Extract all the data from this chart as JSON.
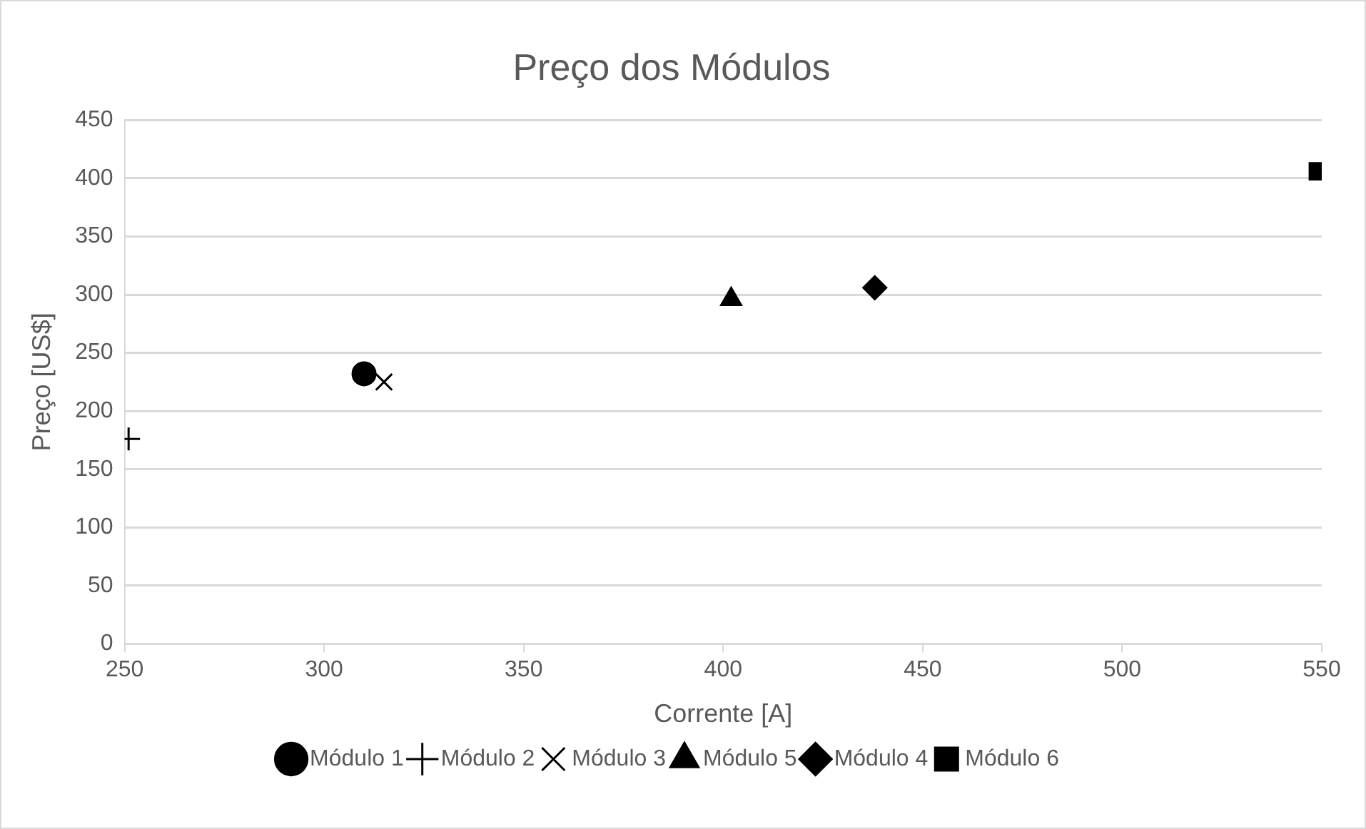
{
  "chart_data": {
    "type": "scatter",
    "title": "Preço dos Módulos",
    "xlabel": "Corrente [A]",
    "ylabel": "Preço [US$]",
    "xlim": [
      250,
      550
    ],
    "xticks": [
      250,
      300,
      350,
      400,
      450,
      500,
      550
    ],
    "ylim": [
      0,
      450
    ],
    "yticks": [
      0,
      50,
      100,
      150,
      200,
      250,
      300,
      350,
      400,
      450
    ],
    "grid": "y",
    "legend": "bottom",
    "series": [
      {
        "name": "Módulo 1",
        "color": "#000000",
        "marker": "circle",
        "x": [
          310
        ],
        "values": [
          232
        ]
      },
      {
        "name": "Módulo 2",
        "color": "#000000",
        "marker": "cross",
        "x": [
          251
        ],
        "values": [
          176
        ]
      },
      {
        "name": "Módulo 3",
        "color": "#000000",
        "marker": "x",
        "x": [
          315
        ],
        "values": [
          225
        ]
      },
      {
        "name": "Módulo 5",
        "color": "#000000",
        "marker": "triangle",
        "x": [
          402
        ],
        "values": [
          296
        ]
      },
      {
        "name": "Módulo 4",
        "color": "#000000",
        "marker": "diamond",
        "x": [
          438
        ],
        "values": [
          306
        ]
      },
      {
        "name": "Módulo 6",
        "color": "#000000",
        "marker": "square",
        "x": [
          549
        ],
        "values": [
          406
        ]
      }
    ]
  }
}
